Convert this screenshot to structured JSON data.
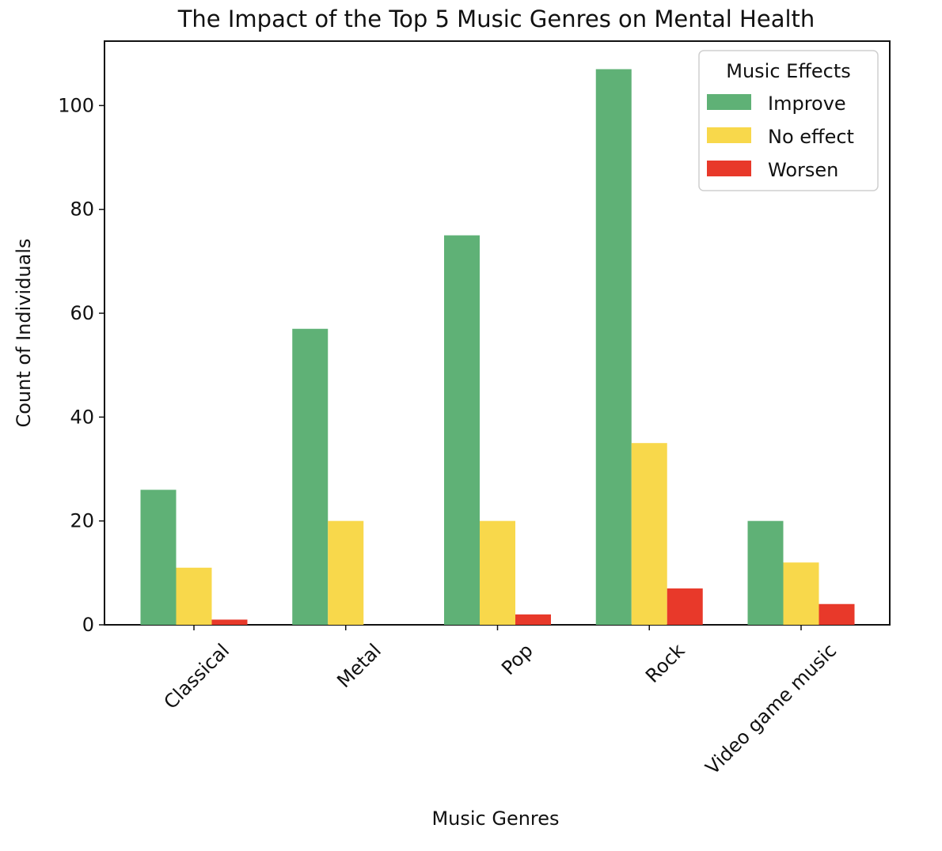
{
  "chart_data": {
    "type": "bar",
    "title": "The Impact of the Top 5 Music Genres on Mental Health",
    "xlabel": "Music Genres",
    "ylabel": "Count of Individuals",
    "categories": [
      "Classical",
      "Metal",
      "Pop",
      "Rock",
      "Video game music"
    ],
    "series": [
      {
        "name": "Improve",
        "color": "#5fb176",
        "values": [
          26,
          57,
          75,
          107,
          20
        ]
      },
      {
        "name": "No effect",
        "color": "#f8d84b",
        "values": [
          11,
          20,
          20,
          35,
          12
        ]
      },
      {
        "name": "Worsen",
        "color": "#e8392a",
        "values": [
          1,
          0,
          2,
          7,
          4
        ]
      }
    ],
    "ylim": [
      0,
      112.4
    ],
    "yticks": [
      0,
      20,
      40,
      60,
      80,
      100
    ],
    "grid": false,
    "legend": {
      "title": "Music Effects",
      "placement": "top-right"
    }
  }
}
